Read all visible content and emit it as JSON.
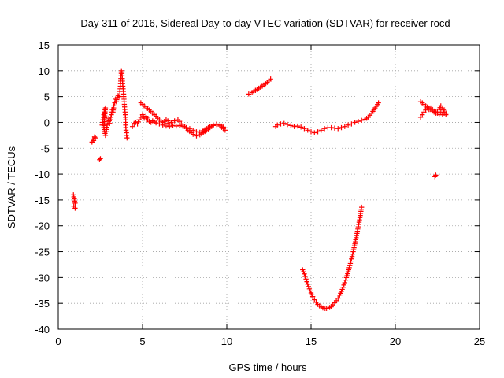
{
  "chart_data": {
    "type": "scatter",
    "title": "Day 311 of 2016, Sidereal Day-to-day VTEC variation (SDTVAR) for receiver rocd",
    "xlabel": "GPS time / hours",
    "ylabel": "SDTVAR / TECUs",
    "xlim": [
      0,
      25
    ],
    "ylim": [
      -40,
      15
    ],
    "xticks": [
      0,
      5,
      10,
      15,
      20,
      25
    ],
    "yticks": [
      -40,
      -35,
      -30,
      -25,
      -20,
      -15,
      -10,
      -5,
      0,
      5,
      10,
      15
    ],
    "grid": true,
    "marker": "plus",
    "color": "#ff0000",
    "series": [
      {
        "name": "sdtvar",
        "segments": [
          [
            [
              0.9,
              -14.0
            ],
            [
              0.95,
              -14.8
            ],
            [
              1.0,
              -15.6
            ],
            [
              0.92,
              -16.2
            ],
            [
              1.0,
              -16.6
            ]
          ],
          [
            [
              2.0,
              -3.8
            ],
            [
              2.05,
              -3.2
            ],
            [
              2.1,
              -3.5
            ],
            [
              2.15,
              -2.8
            ],
            [
              2.2,
              -3.0
            ]
          ],
          [
            [
              2.45,
              -7.2
            ],
            [
              2.5,
              -7.0
            ]
          ],
          [
            [
              2.6,
              -0.5
            ],
            [
              2.65,
              0.5
            ],
            [
              2.7,
              1.5
            ],
            [
              2.75,
              2.5
            ],
            [
              2.8,
              2.8
            ],
            [
              2.7,
              -1.0
            ],
            [
              2.8,
              -2.5
            ],
            [
              2.85,
              -1.8
            ],
            [
              2.9,
              -0.5
            ],
            [
              2.95,
              0.2
            ],
            [
              3.0,
              0.8
            ],
            [
              3.05,
              -0.2
            ],
            [
              3.1,
              0.5
            ],
            [
              3.15,
              1.5
            ],
            [
              3.2,
              2.5
            ],
            [
              3.25,
              2.0
            ],
            [
              3.3,
              3.2
            ],
            [
              3.35,
              3.8
            ],
            [
              3.4,
              4.5
            ],
            [
              3.45,
              4.0
            ],
            [
              3.5,
              4.8
            ],
            [
              3.55,
              5.2
            ],
            [
              3.6,
              5.0
            ]
          ],
          [
            [
              3.65,
              6.0
            ],
            [
              3.68,
              7.0
            ],
            [
              3.7,
              8.0
            ],
            [
              3.72,
              9.0
            ],
            [
              3.75,
              10.0
            ],
            [
              3.78,
              9.5
            ],
            [
              3.8,
              8.5
            ],
            [
              3.82,
              7.5
            ],
            [
              3.85,
              6.5
            ],
            [
              3.88,
              5.5
            ],
            [
              3.9,
              4.5
            ],
            [
              3.92,
              3.5
            ],
            [
              3.95,
              2.5
            ],
            [
              3.98,
              1.5
            ],
            [
              4.0,
              0.5
            ],
            [
              4.0,
              -0.5
            ],
            [
              4.02,
              -1.5
            ],
            [
              4.05,
              -2.0
            ],
            [
              4.05,
              -2.5
            ],
            [
              4.08,
              -3.0
            ]
          ],
          [
            [
              4.4,
              -0.8
            ],
            [
              4.5,
              -0.2
            ],
            [
              4.6,
              0.0
            ],
            [
              4.7,
              -0.3
            ],
            [
              4.8,
              0.5
            ],
            [
              4.9,
              1.0
            ],
            [
              5.0,
              1.5
            ],
            [
              5.1,
              0.8
            ],
            [
              5.2,
              1.2
            ],
            [
              5.3,
              0.5
            ],
            [
              5.4,
              0.2
            ],
            [
              5.5,
              0.0
            ]
          ],
          [
            [
              4.9,
              3.8
            ],
            [
              5.0,
              3.5
            ],
            [
              5.1,
              3.2
            ],
            [
              5.2,
              3.0
            ],
            [
              5.3,
              2.7
            ],
            [
              5.4,
              2.4
            ],
            [
              5.5,
              2.1
            ],
            [
              5.6,
              1.8
            ],
            [
              5.7,
              1.5
            ],
            [
              5.8,
              1.2
            ],
            [
              5.9,
              0.8
            ],
            [
              6.0,
              0.5
            ],
            [
              6.1,
              0.2
            ],
            [
              6.2,
              0.0
            ],
            [
              6.3,
              0.2
            ],
            [
              6.4,
              0.5
            ],
            [
              6.5,
              0.3
            ]
          ],
          [
            [
              5.6,
              0.3
            ],
            [
              5.8,
              -0.1
            ],
            [
              6.0,
              -0.3
            ],
            [
              6.2,
              -0.5
            ],
            [
              6.4,
              -0.7
            ],
            [
              6.6,
              -0.8
            ],
            [
              6.8,
              -0.6
            ],
            [
              7.0,
              -0.7
            ],
            [
              7.2,
              -0.6
            ],
            [
              7.4,
              -0.8
            ],
            [
              7.6,
              -1.0
            ],
            [
              7.8,
              -1.2
            ],
            [
              8.0,
              -1.5
            ],
            [
              8.2,
              -1.8
            ],
            [
              8.4,
              -1.9
            ],
            [
              8.6,
              -1.6
            ],
            [
              8.8,
              -1.2
            ],
            [
              9.0,
              -0.8
            ],
            [
              9.2,
              -0.5
            ],
            [
              9.4,
              -0.4
            ],
            [
              9.6,
              -0.7
            ],
            [
              9.8,
              -1.2
            ],
            [
              9.9,
              -1.5
            ]
          ],
          [
            [
              6.5,
              -0.2
            ],
            [
              6.7,
              0.0
            ],
            [
              6.9,
              0.3
            ],
            [
              7.1,
              0.5
            ],
            [
              7.2,
              0.2
            ],
            [
              7.3,
              -0.3
            ],
            [
              7.5,
              -0.8
            ],
            [
              7.7,
              -1.5
            ],
            [
              7.9,
              -2.0
            ],
            [
              8.0,
              -2.3
            ],
            [
              8.2,
              -2.6
            ],
            [
              8.4,
              -2.4
            ],
            [
              8.6,
              -2.0
            ],
            [
              8.8,
              -1.5
            ],
            [
              9.0,
              -1.0
            ],
            [
              9.2,
              -0.6
            ],
            [
              9.4,
              -0.3
            ],
            [
              9.6,
              -0.5
            ],
            [
              9.8,
              -0.9
            ]
          ],
          [
            [
              11.3,
              5.5
            ],
            [
              11.5,
              5.8
            ],
            [
              11.7,
              6.2
            ],
            [
              11.9,
              6.6
            ],
            [
              12.1,
              7.0
            ],
            [
              12.3,
              7.5
            ],
            [
              12.5,
              8.0
            ],
            [
              12.6,
              8.4
            ]
          ],
          [
            [
              12.9,
              -0.8
            ],
            [
              13.0,
              -0.5
            ],
            [
              13.2,
              -0.3
            ],
            [
              13.4,
              -0.2
            ],
            [
              13.6,
              -0.4
            ],
            [
              13.8,
              -0.6
            ],
            [
              14.0,
              -0.8
            ],
            [
              14.2,
              -0.7
            ],
            [
              14.4,
              -0.9
            ],
            [
              14.6,
              -1.2
            ],
            [
              14.8,
              -1.5
            ],
            [
              15.0,
              -1.8
            ],
            [
              15.2,
              -2.0
            ],
            [
              15.4,
              -1.8
            ],
            [
              15.6,
              -1.5
            ],
            [
              15.8,
              -1.2
            ],
            [
              16.0,
              -1.0
            ],
            [
              16.2,
              -1.0
            ],
            [
              16.4,
              -1.1
            ],
            [
              16.6,
              -1.2
            ],
            [
              16.8,
              -1.0
            ],
            [
              17.0,
              -0.8
            ],
            [
              17.2,
              -0.5
            ],
            [
              17.4,
              -0.3
            ],
            [
              17.6,
              0.0
            ],
            [
              17.8,
              0.2
            ],
            [
              18.0,
              0.4
            ],
            [
              18.2,
              0.6
            ],
            [
              18.4,
              1.0
            ],
            [
              18.6,
              1.8
            ],
            [
              18.8,
              2.8
            ],
            [
              19.0,
              3.8
            ]
          ],
          [
            [
              14.5,
              -28.5
            ],
            [
              14.6,
              -29.3
            ],
            [
              14.7,
              -30.3
            ],
            [
              14.8,
              -31.3
            ],
            [
              14.9,
              -32.2
            ],
            [
              15.0,
              -33.0
            ],
            [
              15.1,
              -33.7
            ],
            [
              15.2,
              -34.3
            ],
            [
              15.3,
              -34.8
            ],
            [
              15.4,
              -35.2
            ],
            [
              15.5,
              -35.5
            ],
            [
              15.6,
              -35.7
            ],
            [
              15.7,
              -35.9
            ],
            [
              15.8,
              -36.0
            ],
            [
              15.9,
              -36.0
            ],
            [
              16.0,
              -36.0
            ],
            [
              16.1,
              -35.8
            ],
            [
              16.2,
              -35.6
            ],
            [
              16.3,
              -35.3
            ],
            [
              16.4,
              -34.9
            ],
            [
              16.5,
              -34.5
            ],
            [
              16.6,
              -34.0
            ],
            [
              16.7,
              -33.4
            ],
            [
              16.8,
              -32.7
            ],
            [
              16.9,
              -31.9
            ],
            [
              17.0,
              -31.0
            ],
            [
              17.1,
              -30.0
            ],
            [
              17.2,
              -28.9
            ],
            [
              17.3,
              -27.7
            ],
            [
              17.4,
              -26.4
            ],
            [
              17.5,
              -25.0
            ],
            [
              17.6,
              -23.5
            ],
            [
              17.7,
              -21.9
            ],
            [
              17.8,
              -20.2
            ],
            [
              17.9,
              -18.4
            ],
            [
              18.0,
              -16.4
            ]
          ],
          [
            [
              21.5,
              4.0
            ],
            [
              21.6,
              3.8
            ],
            [
              21.7,
              3.5
            ],
            [
              21.8,
              3.2
            ],
            [
              21.9,
              3.0
            ],
            [
              22.0,
              2.8
            ],
            [
              22.1,
              2.5
            ],
            [
              22.2,
              2.2
            ],
            [
              22.3,
              2.0
            ],
            [
              22.4,
              1.8
            ],
            [
              22.5,
              2.0
            ],
            [
              22.6,
              2.5
            ],
            [
              22.7,
              3.2
            ],
            [
              22.8,
              2.8
            ],
            [
              22.9,
              2.0
            ],
            [
              23.0,
              1.5
            ]
          ],
          [
            [
              21.5,
              1.0
            ],
            [
              21.6,
              1.5
            ],
            [
              21.7,
              2.0
            ],
            [
              21.8,
              2.4
            ],
            [
              21.9,
              2.8
            ],
            [
              22.0,
              2.5
            ],
            [
              22.1,
              2.8
            ],
            [
              22.2,
              2.5
            ],
            [
              22.3,
              2.2
            ],
            [
              22.4,
              2.0
            ],
            [
              22.5,
              1.8
            ],
            [
              22.6,
              1.5
            ],
            [
              22.7,
              2.0
            ],
            [
              22.8,
              1.5
            ],
            [
              22.9,
              1.8
            ],
            [
              23.0,
              1.8
            ]
          ],
          [
            [
              22.35,
              -10.5
            ],
            [
              22.4,
              -10.2
            ]
          ]
        ]
      }
    ]
  }
}
